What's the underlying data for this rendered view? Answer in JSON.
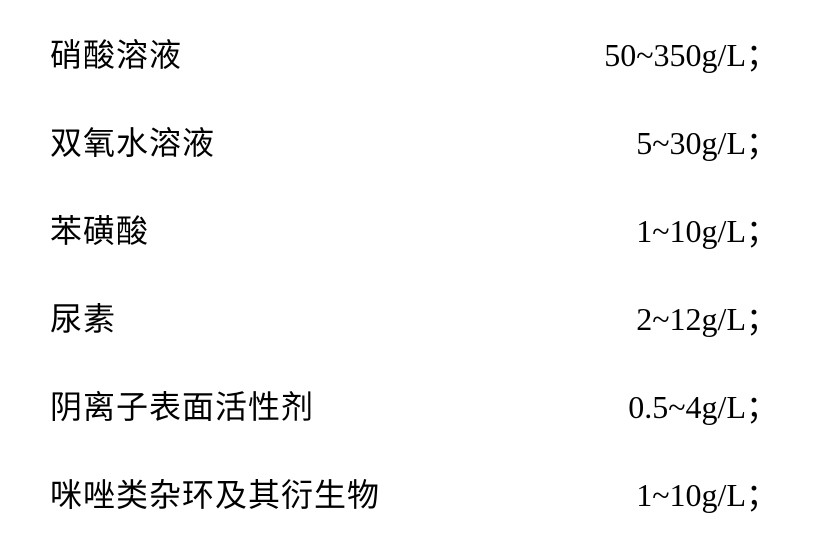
{
  "rows": [
    {
      "label": "硝酸溶液",
      "value": "50~350g/L；"
    },
    {
      "label": "双氧水溶液",
      "value": "5~30g/L；"
    },
    {
      "label": "苯磺酸",
      "value": "1~10g/L；"
    },
    {
      "label": "尿素",
      "value": "2~12g/L；"
    },
    {
      "label": "阴离子表面活性剂",
      "value": "0.5~4g/L；"
    },
    {
      "label": "咪唑类杂环及其衍生物",
      "value": "1~10g/L；"
    }
  ],
  "styling": {
    "background_color": "#ffffff",
    "text_color": "#000000",
    "font_size": 32,
    "font_family": "SimSun",
    "row_spacing": 42,
    "label_width": 420
  }
}
